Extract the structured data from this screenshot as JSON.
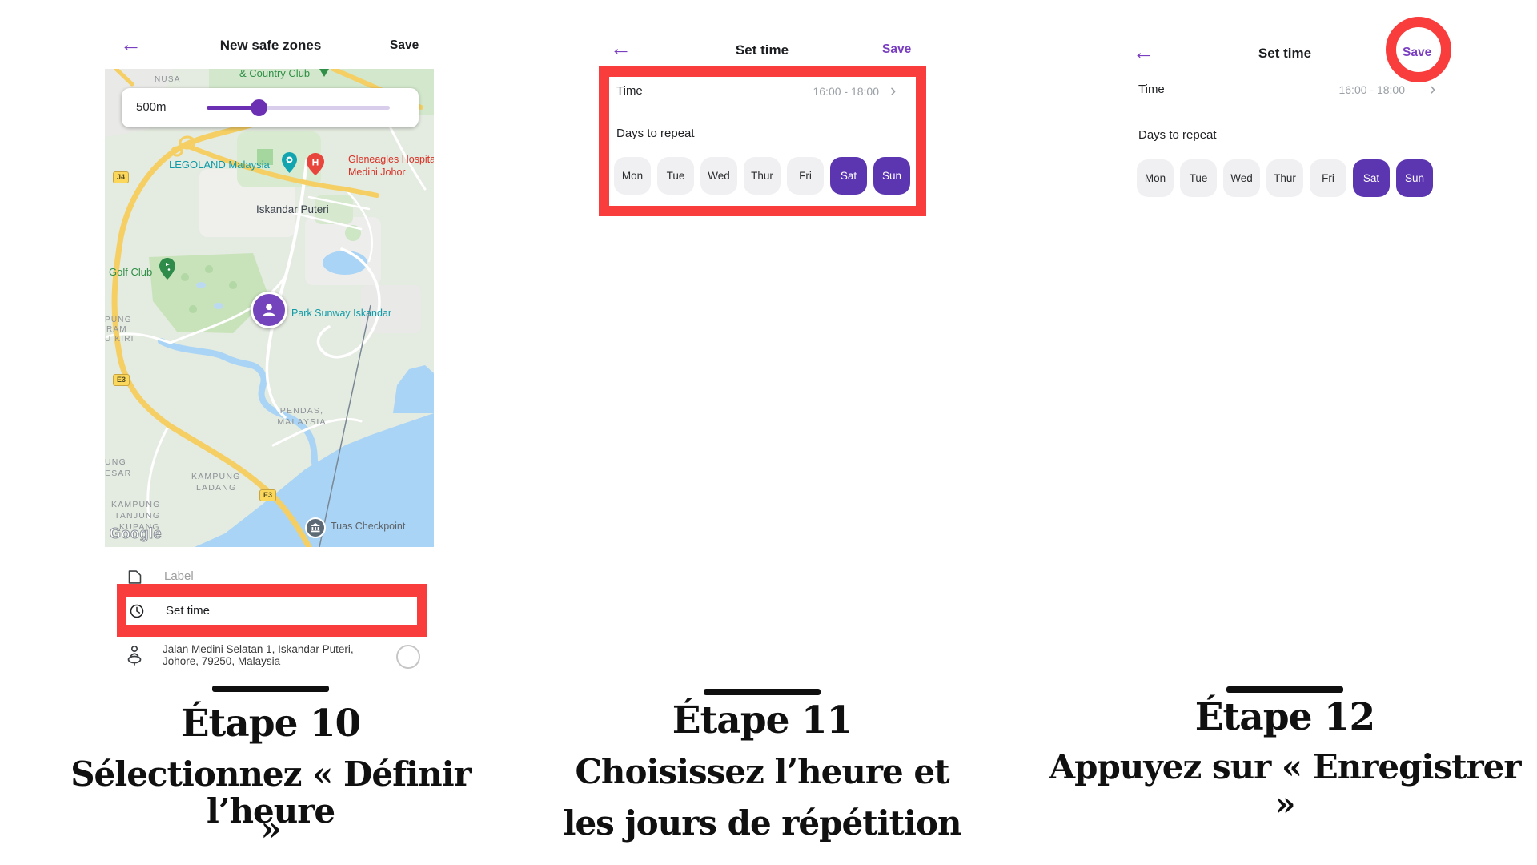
{
  "colors": {
    "accent_purple": "#7a3fc1",
    "selected_chip_purple": "#5c35b1",
    "highlight_red": "#f93c3c"
  },
  "screen1": {
    "back_icon": "←",
    "title": "New safe zones",
    "save_label": "Save",
    "slider": {
      "radius_label": "500m"
    },
    "map": {
      "labels": {
        "nusa": "NUSA",
        "country_club": "& Country Club",
        "legoland": "LEGOLAND Malaysia",
        "gleneagles_pin": "H",
        "gleneagles_1": "Gleneagles Hospital",
        "gleneagles_2": "Medini Johor",
        "iskandar_puteri": "Iskandar Puteri",
        "golf_club": "Golf Club",
        "park_sunway": "Park Sunway Iskandar",
        "kampung_cut_1": "PUNG",
        "kampung_cut_2": "RAM",
        "kampung_cut_3": "U KIRI",
        "pendas_1": "PENDAS,",
        "pendas_2": "MALAYSIA",
        "kampung_besar_1": "UNG",
        "kampung_besar_2": "ESAR",
        "kampung_ladang_1": "KAMPUNG",
        "kampung_ladang_2": "LADANG",
        "kampung_tanjung_1": "KAMPUNG",
        "kampung_tanjung_2": "TANJUNG",
        "kampung_tanjung_3": "KUPANG",
        "badge_j4": "J4",
        "badge_e3_west": "E3",
        "badge_e3_south": "E3",
        "tuas": "Tuas Checkpoint",
        "google": "Google"
      }
    },
    "fields": {
      "label_placeholder": "Label",
      "set_time": "Set time",
      "address_1": "Jalan Medini Selatan 1, Iskandar Puteri,",
      "address_2": "Johore, 79250, Malaysia"
    }
  },
  "screen2": {
    "back_icon": "←",
    "title": "Set time",
    "save_label": "Save",
    "time_label": "Time",
    "time_value": "16:00 - 18:00",
    "chevron": "›",
    "days_label": "Days to repeat",
    "days": [
      {
        "label": "Mon",
        "selected": false
      },
      {
        "label": "Tue",
        "selected": false
      },
      {
        "label": "Wed",
        "selected": false
      },
      {
        "label": "Thur",
        "selected": false
      },
      {
        "label": "Fri",
        "selected": false
      },
      {
        "label": "Sat",
        "selected": true
      },
      {
        "label": "Sun",
        "selected": true
      }
    ]
  },
  "screen3": {
    "back_icon": "←",
    "title": "Set time",
    "save_label": "Save",
    "time_label": "Time",
    "time_value": "16:00 - 18:00",
    "chevron": "›",
    "days_label": "Days to repeat",
    "days": [
      {
        "label": "Mon",
        "selected": false
      },
      {
        "label": "Tue",
        "selected": false
      },
      {
        "label": "Wed",
        "selected": false
      },
      {
        "label": "Thur",
        "selected": false
      },
      {
        "label": "Fri",
        "selected": false
      },
      {
        "label": "Sat",
        "selected": true
      },
      {
        "label": "Sun",
        "selected": true
      }
    ]
  },
  "captions": {
    "step10": {
      "title": "Étape 10",
      "line1": "Sélectionnez « Définir l’heure",
      "line2": "»"
    },
    "step11": {
      "title": "Étape 11",
      "line1": "Choisissez l’heure et",
      "line2": "les jours de répétition"
    },
    "step12": {
      "title": "Étape 12",
      "line1": "Appuyez sur « Enregistrer »"
    }
  }
}
